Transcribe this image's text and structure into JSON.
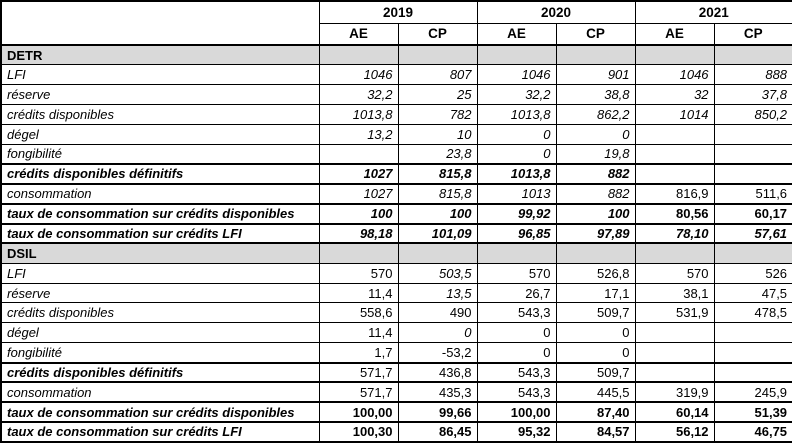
{
  "table": {
    "section_color": "#d9d9d9",
    "year_headers": [
      "2019",
      "2020",
      "2021"
    ],
    "sub_headers": [
      "AE",
      "CP"
    ],
    "rows": [
      {
        "section": "DETR"
      },
      {
        "label": "LFI",
        "values": [
          "1046",
          "807",
          "1046",
          "901",
          "1046",
          "888"
        ],
        "italics": [
          1,
          1,
          1,
          1,
          1,
          1
        ]
      },
      {
        "label": "réserve",
        "values": [
          "32,2",
          "25",
          "32,2",
          "38,8",
          "32",
          "37,8"
        ],
        "italics": [
          1,
          1,
          1,
          1,
          1,
          1
        ]
      },
      {
        "label": "crédits disponibles",
        "values": [
          "1013,8",
          "782",
          "1013,8",
          "862,2",
          "1014",
          "850,2"
        ],
        "italics": [
          1,
          1,
          1,
          1,
          1,
          1
        ]
      },
      {
        "label": "dégel",
        "values": [
          "13,2",
          "10",
          "0",
          "0",
          "",
          ""
        ],
        "italics": [
          1,
          1,
          1,
          1,
          1,
          1
        ]
      },
      {
        "label": "fongibilité",
        "values": [
          "",
          "23,8",
          "0",
          "19,8",
          "",
          ""
        ],
        "italics": [
          1,
          1,
          1,
          1,
          1,
          1
        ]
      },
      {
        "label": "crédits disponibles définitifs",
        "bold": true,
        "values_bold": true,
        "values": [
          "1027",
          "815,8",
          "1013,8",
          "882",
          "",
          ""
        ],
        "italics": [
          1,
          1,
          1,
          1,
          1,
          1
        ]
      },
      {
        "label": "consommation",
        "values": [
          "1027",
          "815,8",
          "1013",
          "882",
          "816,9",
          "511,6"
        ],
        "italics": [
          1,
          1,
          1,
          1,
          0,
          0
        ]
      },
      {
        "label": "taux de consommation sur crédits disponibles",
        "bold": true,
        "values_bold": true,
        "values": [
          "100",
          "100",
          "99,92",
          "100",
          "80,56",
          "60,17"
        ],
        "italics": [
          1,
          1,
          1,
          1,
          0,
          0
        ]
      },
      {
        "label": "taux de consommation sur crédits LFI",
        "bold": true,
        "values_bold": true,
        "values": [
          "98,18",
          "101,09",
          "96,85",
          "97,89",
          "78,10",
          "57,61"
        ],
        "italics": [
          1,
          1,
          1,
          1,
          1,
          1
        ]
      },
      {
        "section": "DSIL"
      },
      {
        "label": "LFI",
        "values": [
          "570",
          "503,5",
          "570",
          "526,8",
          "570",
          "526"
        ],
        "italics": [
          0,
          1,
          0,
          0,
          0,
          0
        ]
      },
      {
        "label": "réserve",
        "values": [
          "11,4",
          "13,5",
          "26,7",
          "17,1",
          "38,1",
          "47,5"
        ],
        "italics": [
          0,
          1,
          0,
          0,
          0,
          0
        ]
      },
      {
        "label": "crédits disponibles",
        "values": [
          "558,6",
          "490",
          "543,3",
          "509,7",
          "531,9",
          "478,5"
        ],
        "italics": [
          0,
          0,
          0,
          0,
          0,
          0
        ]
      },
      {
        "label": "dégel",
        "values": [
          "11,4",
          "0",
          "0",
          "0",
          "",
          ""
        ],
        "italics": [
          0,
          1,
          0,
          0,
          0,
          0
        ]
      },
      {
        "label": "fongibilité",
        "values": [
          "1,7",
          "-53,2",
          "0",
          "0",
          "",
          ""
        ],
        "italics": [
          0,
          0,
          0,
          0,
          0,
          0
        ]
      },
      {
        "label": "crédits disponibles définitifs",
        "bold": true,
        "values": [
          "571,7",
          "436,8",
          "543,3",
          "509,7",
          "",
          ""
        ],
        "italics": [
          0,
          0,
          0,
          0,
          0,
          0
        ]
      },
      {
        "label": "consommation",
        "values": [
          "571,7",
          "435,3",
          "543,3",
          "445,5",
          "319,9",
          "245,9"
        ],
        "italics": [
          0,
          0,
          0,
          0,
          0,
          0
        ]
      },
      {
        "label": "taux de consommation sur crédits disponibles",
        "bold": true,
        "values_bold": true,
        "values": [
          "100,00",
          "99,66",
          "100,00",
          "87,40",
          "60,14",
          "51,39"
        ],
        "italics": [
          0,
          0,
          0,
          0,
          0,
          0
        ]
      },
      {
        "label": "taux de consommation sur crédits LFI",
        "bold": true,
        "values_bold": true,
        "values": [
          "100,30",
          "86,45",
          "95,32",
          "84,57",
          "56,12",
          "46,75"
        ],
        "italics": [
          0,
          0,
          0,
          0,
          0,
          0
        ]
      }
    ]
  }
}
